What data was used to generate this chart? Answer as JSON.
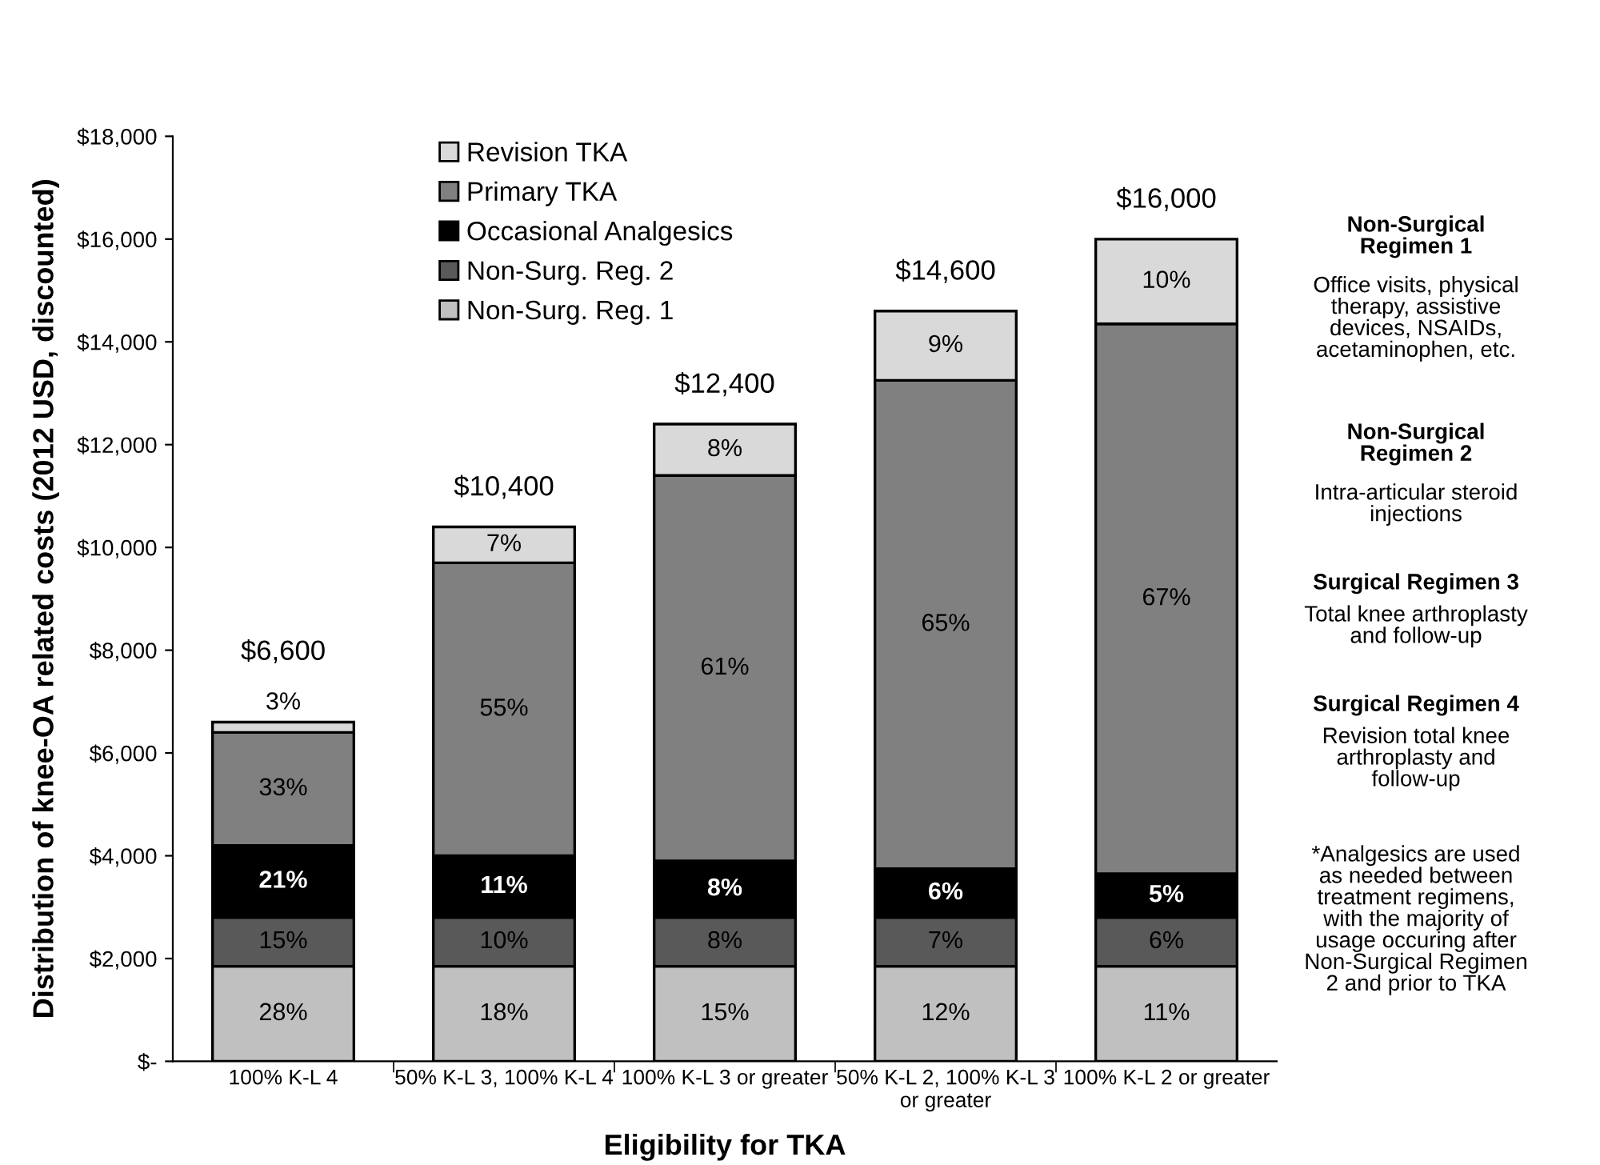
{
  "chart_data": {
    "type": "bar",
    "stacked": true,
    "xlabel": "Eligibility for TKA",
    "ylabel": "Distribution of knee-OA related costs (2012 USD, discounted)",
    "categories": [
      "100% K-L 4",
      "50% K-L 3, 100% K-L 4",
      "100% K-L 3 or greater",
      "50% K-L 2, 100% K-L 3\nor greater",
      "100% K-L 2 or greater"
    ],
    "series": [
      {
        "name": "Non-Surg. Reg. 1",
        "color": "#c0c0c0",
        "values": [
          1850,
          1850,
          1850,
          1850,
          1850
        ]
      },
      {
        "name": "Non-Surg. Reg. 2",
        "color": "#595959",
        "values": [
          950,
          950,
          950,
          950,
          950
        ]
      },
      {
        "name": "Occasional Analgesics",
        "color": "#000000",
        "values": [
          1400,
          1200,
          1100,
          950,
          850
        ]
      },
      {
        "name": "Primary TKA",
        "color": "#808080",
        "values": [
          2200,
          5700,
          7500,
          9500,
          10700
        ]
      },
      {
        "name": "Revision TKA",
        "color": "#d9d9d9",
        "values": [
          200,
          700,
          1000,
          1350,
          1650
        ]
      }
    ],
    "totals": [
      "$6,600",
      "$10,400",
      "$12,400",
      "$14,600",
      "$16,000"
    ],
    "ylim": [
      0,
      18000
    ],
    "yticks": [
      {
        "value": 0,
        "label": "$-"
      },
      {
        "value": 2000,
        "label": "$2,000"
      },
      {
        "value": 4000,
        "label": "$4,000"
      },
      {
        "value": 6000,
        "label": "$6,000"
      },
      {
        "value": 8000,
        "label": "$8,000"
      },
      {
        "value": 10000,
        "label": "$10,000"
      },
      {
        "value": 12000,
        "label": "$12,000"
      },
      {
        "value": 14000,
        "label": "$14,000"
      },
      {
        "value": 16000,
        "label": "$16,000"
      },
      {
        "value": 18000,
        "label": "$18,000"
      }
    ],
    "grid": false,
    "legend": "top left",
    "annotations": [
      "28%",
      "15%",
      "21%",
      "33%",
      "3%",
      "18%",
      "10%",
      "11%",
      "55%",
      "7%",
      "15%",
      "8%",
      "8%",
      "61%",
      "8%",
      "12%",
      "7%",
      "6%",
      "65%",
      "9%",
      "11%",
      "6%",
      "5%",
      "67%",
      "10%",
      "Non-Surgical\nRegimen 1",
      "Office visits, physical\ntherapy, assistive\ndevices, NSAIDs,\nacetaminophen, etc.",
      "Non-Surgical\nRegimen 2",
      "Intra-articular steroid\ninjections",
      "Surgical Regimen 3",
      "Total knee arthroplasty\nand follow-up",
      "Surgical Regimen 4",
      "Revision total knee\narthroplasty and\nfollow-up",
      "*Analgesics are used\nas needed between\ntreatment regimens,\nwith the majority of\nusage occuring after\nNon-Surgical Regimen\n2 and prior to TKA"
    ]
  }
}
